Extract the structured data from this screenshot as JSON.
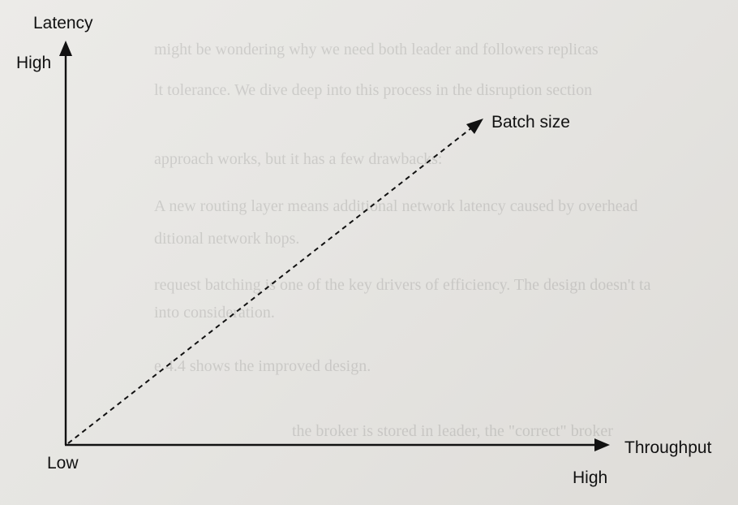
{
  "diagram": {
    "y_axis": {
      "title": "Latency",
      "high_label": "High",
      "low_label": "Low"
    },
    "x_axis": {
      "title": "Throughput",
      "high_label": "High"
    },
    "trend_line": {
      "label": "Batch size",
      "style": "dashed"
    }
  },
  "background_text": [
    "might be wondering why we need both leader and followers replicas",
    "lt tolerance. We dive deep into this process in the disruption section",
    "approach works, but it has a few drawbacks:",
    "A new routing layer means additional network latency caused by overhead",
    "ditional network hops.",
    "request batching is one of the key drivers of efficiency. The design doesn't ta",
    "into consideration.",
    "e 4.4 shows the improved design.",
    "the broker is stored in leader, the \"correct\" broker"
  ],
  "colors": {
    "ink": "#111111",
    "paper": "#e8e7e4"
  }
}
